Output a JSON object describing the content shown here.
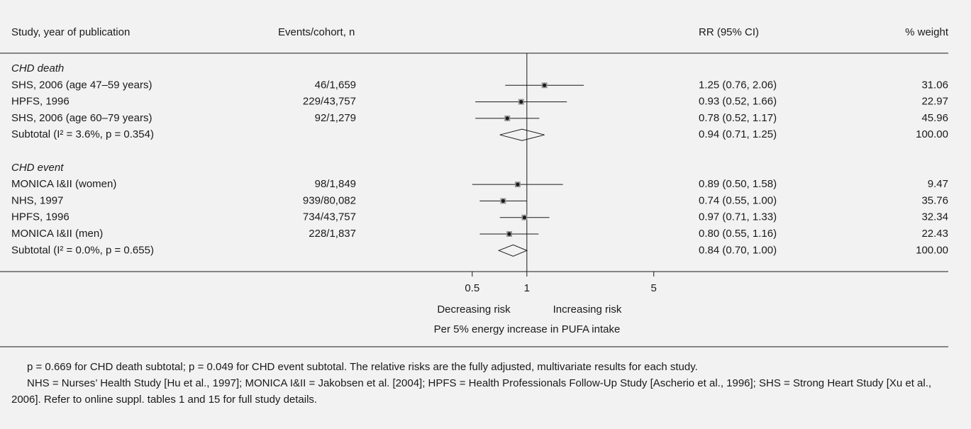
{
  "chart_data": {
    "type": "forest",
    "headers": {
      "study": "Study, year of publication",
      "events": "Events/cohort, n",
      "rr": "RR (95% CI)",
      "weight": "% weight"
    },
    "groups": [
      {
        "label": "CHD death",
        "studies": [
          {
            "name": "SHS, 2006 (age 47–59 years)",
            "events": "46/1,659",
            "rr": 1.25,
            "lo": 0.76,
            "hi": 2.06,
            "rr_label": "1.25 (0.76, 2.06)",
            "weight": "31.06"
          },
          {
            "name": "HPFS, 1996",
            "events": "229/43,757",
            "rr": 0.93,
            "lo": 0.52,
            "hi": 1.66,
            "rr_label": "0.93 (0.52, 1.66)",
            "weight": "22.97"
          },
          {
            "name": "SHS, 2006 (age 60–79 years)",
            "events": "92/1,279",
            "rr": 0.78,
            "lo": 0.52,
            "hi": 1.17,
            "rr_label": "0.78 (0.52, 1.17)",
            "weight": "45.96"
          }
        ],
        "subtotal": {
          "name": "Subtotal (I² = 3.6%, p = 0.354)",
          "rr": 0.94,
          "lo": 0.71,
          "hi": 1.25,
          "rr_label": "0.94 (0.71, 1.25)",
          "weight": "100.00"
        }
      },
      {
        "label": "CHD event",
        "studies": [
          {
            "name": "MONICA I&II (women)",
            "events": "98/1,849",
            "rr": 0.89,
            "lo": 0.5,
            "hi": 1.58,
            "rr_label": "0.89 (0.50, 1.58)",
            "weight": "9.47"
          },
          {
            "name": "NHS, 1997",
            "events": "939/80,082",
            "rr": 0.74,
            "lo": 0.55,
            "hi": 1.0,
            "rr_label": "0.74 (0.55, 1.00)",
            "weight": "35.76"
          },
          {
            "name": "HPFS, 1996",
            "events": "734/43,757",
            "rr": 0.97,
            "lo": 0.71,
            "hi": 1.33,
            "rr_label": "0.97 (0.71, 1.33)",
            "weight": "32.34"
          },
          {
            "name": "MONICA I&II (men)",
            "events": "228/1,837",
            "rr": 0.8,
            "lo": 0.55,
            "hi": 1.16,
            "rr_label": "0.80 (0.55, 1.16)",
            "weight": "22.43"
          }
        ],
        "subtotal": {
          "name": "Subtotal (I² = 0.0%, p = 0.655)",
          "rr": 0.84,
          "lo": 0.7,
          "hi": 1.0,
          "rr_label": "0.84 (0.70, 1.00)",
          "weight": "100.00"
        }
      }
    ],
    "xscale": "log",
    "xlim": [
      0.3,
      6
    ],
    "xticks": [
      0.5,
      1,
      5
    ],
    "reference": 1,
    "left_label": "Decreasing risk",
    "right_label": "Increasing risk",
    "xlabel": "Per 5% energy increase in PUFA intake",
    "marker_color": "#999999",
    "footnotes": [
      "p = 0.669 for CHD death subtotal; p = 0.049 for CHD event subtotal. The relative risks are the fully adjusted, multivariate results for each study.",
      "NHS = Nurses’ Health Study [Hu et al., 1997]; MONICA I&II = Jakobsen et al. [2004]; HPFS = Health Professionals Follow-Up Study [Ascherio et al., 1996]; SHS = Strong Heart Study [Xu et al., 2006]. Refer to online suppl. tables 1 and 15 for full study details."
    ]
  }
}
